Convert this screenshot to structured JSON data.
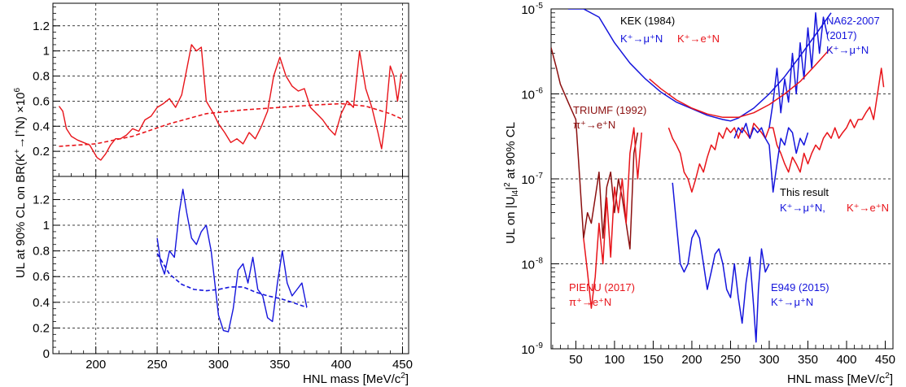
{
  "colors": {
    "red": "#e8141a",
    "blue": "#1515dc",
    "darkred": "#8b1010",
    "grid": "#000000"
  },
  "chart_data": [
    {
      "type": "line",
      "panel": "left-top",
      "xlabel": "",
      "ylabel": "",
      "xlim": [
        165,
        455
      ],
      "ylim": [
        0,
        1.38
      ],
      "yticks": [
        0.2,
        0.4,
        0.6,
        0.8,
        1,
        1.2
      ],
      "ytick_labels": [
        "0.2",
        "0.4",
        "0.6",
        "0.8",
        "1",
        "1.2"
      ],
      "grid": true,
      "series": [
        {
          "style": "solid",
          "color": "red",
          "x": [
            170,
            173,
            176,
            180,
            185,
            190,
            195,
            198,
            201,
            204,
            208,
            212,
            216,
            220,
            225,
            230,
            235,
            240,
            245,
            250,
            255,
            260,
            265,
            270,
            274,
            278,
            282,
            286,
            290,
            293,
            296,
            300,
            305,
            310,
            315,
            320,
            325,
            330,
            335,
            340,
            345,
            350,
            355,
            360,
            365,
            370,
            375,
            380,
            385,
            390,
            395,
            400,
            405,
            410,
            415,
            420,
            425,
            430,
            433,
            436,
            440,
            443,
            446,
            449
          ],
          "y": [
            0.56,
            0.52,
            0.38,
            0.32,
            0.29,
            0.27,
            0.25,
            0.2,
            0.15,
            0.13,
            0.18,
            0.25,
            0.3,
            0.3,
            0.33,
            0.38,
            0.36,
            0.45,
            0.48,
            0.55,
            0.58,
            0.62,
            0.55,
            0.65,
            0.85,
            1.05,
            1.0,
            1.03,
            0.6,
            0.55,
            0.5,
            0.42,
            0.35,
            0.27,
            0.3,
            0.26,
            0.35,
            0.3,
            0.4,
            0.52,
            0.8,
            0.95,
            0.8,
            0.72,
            0.68,
            0.7,
            0.55,
            0.5,
            0.45,
            0.38,
            0.33,
            0.5,
            0.6,
            0.55,
            1.0,
            0.7,
            0.55,
            0.35,
            0.22,
            0.45,
            0.88,
            0.8,
            0.6,
            0.82
          ]
        },
        {
          "style": "dashed",
          "color": "red",
          "x": [
            170,
            200,
            230,
            260,
            290,
            320,
            350,
            380,
            400,
            420,
            440,
            449
          ],
          "y": [
            0.24,
            0.26,
            0.32,
            0.42,
            0.5,
            0.53,
            0.55,
            0.57,
            0.58,
            0.56,
            0.5,
            0.46
          ]
        }
      ]
    },
    {
      "type": "line",
      "panel": "left-bottom",
      "xlabel": "HNL mass [MeV/c²]",
      "ylabel": "",
      "xlim": [
        165,
        455
      ],
      "ylim": [
        0,
        1.38
      ],
      "yticks": [
        0,
        0.2,
        0.4,
        0.6,
        0.8,
        1,
        1.2
      ],
      "ytick_labels": [
        "0",
        "0.2",
        "0.4",
        "0.6",
        "0.8",
        "1",
        "1.2"
      ],
      "xticks": [
        200,
        250,
        300,
        350,
        400,
        450
      ],
      "xtick_labels": [
        "200",
        "250",
        "300",
        "350",
        "400",
        "450"
      ],
      "grid": true,
      "series": [
        {
          "style": "solid",
          "color": "blue",
          "x": [
            250,
            253,
            256,
            260,
            264,
            268,
            271,
            274,
            278,
            282,
            286,
            290,
            294,
            297,
            300,
            304,
            308,
            312,
            316,
            320,
            324,
            328,
            332,
            336,
            340,
            344,
            348,
            352,
            356,
            360,
            364,
            368,
            372
          ],
          "y": [
            0.9,
            0.7,
            0.62,
            0.8,
            0.75,
            1.1,
            1.28,
            1.1,
            0.9,
            0.85,
            0.95,
            1.0,
            0.8,
            0.55,
            0.3,
            0.18,
            0.17,
            0.35,
            0.65,
            0.7,
            0.55,
            0.75,
            0.5,
            0.45,
            0.28,
            0.25,
            0.55,
            0.8,
            0.55,
            0.45,
            0.5,
            0.55,
            0.36
          ]
        },
        {
          "style": "dashed",
          "color": "blue",
          "x": [
            250,
            260,
            270,
            280,
            290,
            300,
            310,
            320,
            330,
            340,
            350,
            360,
            372
          ],
          "y": [
            0.78,
            0.62,
            0.54,
            0.5,
            0.49,
            0.5,
            0.52,
            0.52,
            0.48,
            0.45,
            0.43,
            0.4,
            0.36
          ]
        }
      ]
    },
    {
      "type": "line",
      "panel": "right",
      "xlabel": "HNL mass [MeV/c²]",
      "ylabel": "",
      "xlim": [
        18,
        460
      ],
      "ylim": [
        1e-09,
        1e-05
      ],
      "yscale": "log",
      "xticks": [
        50,
        100,
        150,
        200,
        250,
        300,
        350,
        400,
        450
      ],
      "xtick_labels": [
        "50",
        "100",
        "150",
        "200",
        "250",
        "300",
        "350",
        "400",
        "450"
      ],
      "grid": "y-major",
      "series": [
        {
          "color": "darkred",
          "x": [
            18,
            25,
            30,
            40,
            50,
            55,
            60,
            65,
            70,
            75,
            80,
            85,
            90,
            95,
            100,
            105,
            110,
            115,
            120,
            125,
            130
          ],
          "y": [
            3.5e-06,
            2e-06,
            1.3e-06,
            8e-07,
            5e-07,
            1e-07,
            2e-08,
            4e-08,
            3e-08,
            6e-08,
            1.2e-07,
            2e-08,
            8e-08,
            1.2e-07,
            4e-08,
            1e-07,
            6e-08,
            3e-08,
            1.5e-08,
            2e-07,
            3.5e-07
          ]
        },
        {
          "color": "red",
          "x": [
            60,
            65,
            70,
            75,
            80,
            85,
            90,
            95,
            100,
            105,
            110,
            115,
            120,
            125,
            130,
            135
          ],
          "y": [
            2e-08,
            8e-09,
            3e-09,
            7e-09,
            3e-08,
            1e-08,
            6e-08,
            1.2e-08,
            8e-08,
            4e-08,
            1e-07,
            3e-08,
            2e-07,
            4e-07,
            1e-07,
            3.5e-07
          ]
        },
        {
          "color": "red",
          "x": [
            170,
            175,
            180,
            185,
            190,
            195,
            200,
            205,
            210,
            215,
            220,
            225,
            230,
            235,
            240,
            245,
            250,
            255,
            260,
            265,
            270,
            275,
            280,
            285,
            290,
            295,
            300,
            305,
            310,
            315,
            320,
            325,
            330,
            335,
            340,
            345,
            350,
            355,
            360,
            365,
            370,
            375,
            380,
            385,
            390,
            395,
            400,
            405,
            410,
            415,
            420,
            425,
            430,
            435,
            440,
            445,
            448
          ],
          "y": [
            4e-07,
            3e-07,
            2.5e-07,
            2e-07,
            1.2e-07,
            1e-07,
            7e-08,
            1e-07,
            1.5e-07,
            1.2e-07,
            1.8e-07,
            2.5e-07,
            2.2e-07,
            3.5e-07,
            3e-07,
            4e-07,
            3.5e-07,
            4e-07,
            3e-07,
            4e-07,
            3.5e-07,
            3e-07,
            4.5e-07,
            4e-07,
            3.5e-07,
            3e-07,
            4e-07,
            4e-07,
            2.5e-07,
            2e-07,
            1.5e-07,
            1.2e-07,
            1.8e-07,
            1.5e-07,
            1.2e-07,
            2e-07,
            1.5e-07,
            2e-07,
            2.5e-07,
            2.2e-07,
            3e-07,
            3.5e-07,
            3e-07,
            4e-07,
            3e-07,
            3.5e-07,
            4e-07,
            5e-07,
            4e-07,
            5e-07,
            5e-07,
            6e-07,
            7e-07,
            5e-07,
            1e-06,
            2e-06,
            1.2e-06
          ]
        },
        {
          "color": "blue",
          "x": [
            175,
            180,
            185,
            190,
            195,
            200,
            205,
            210,
            215,
            220,
            225,
            230,
            235,
            240,
            245,
            250,
            255,
            260,
            265,
            270,
            275,
            280,
            283,
            286,
            290,
            295,
            300
          ],
          "y": [
            9e-08,
            3e-08,
            1e-08,
            8e-09,
            1e-08,
            2e-08,
            2.5e-08,
            2e-08,
            1e-08,
            5e-09,
            8e-09,
            1.3e-08,
            1.5e-08,
            1e-08,
            5e-09,
            4e-09,
            1e-08,
            4e-09,
            2e-09,
            6e-09,
            1.2e-08,
            3e-09,
            1.2e-09,
            5e-09,
            1.5e-08,
            8e-09,
            1e-08
          ]
        },
        {
          "color": "blue",
          "x": [
            255,
            260,
            265,
            270,
            275,
            280,
            285,
            290,
            295,
            300,
            305,
            310,
            315,
            320,
            325,
            330,
            335,
            340,
            345,
            350
          ],
          "y": [
            3e-07,
            4e-07,
            3.5e-07,
            4.5e-07,
            3e-07,
            4e-07,
            3.5e-07,
            4e-07,
            3e-07,
            2.5e-07,
            7e-08,
            1.5e-07,
            3e-07,
            2.5e-07,
            4e-07,
            3.5e-07,
            2e-07,
            3e-07,
            2.5e-07,
            3.5e-07
          ]
        },
        {
          "color": "blue",
          "x": [
            300,
            305,
            310,
            315,
            320,
            325,
            330,
            335,
            340,
            345,
            350,
            355,
            360,
            365,
            370,
            375
          ],
          "y": [
            4e-07,
            8e-07,
            2e-06,
            6e-07,
            1.5e-06,
            8e-07,
            3e-06,
            1e-06,
            4e-06,
            1.5e-06,
            6e-06,
            2e-06,
            9e-06,
            3e-06,
            8e-06,
            5e-06
          ]
        },
        {
          "color": "blue",
          "x": [
            40,
            60,
            80,
            100,
            120,
            140,
            160,
            180,
            200,
            220,
            240,
            250,
            260,
            280,
            300,
            320,
            340,
            360,
            380
          ],
          "y": [
            1e-05,
            1e-05,
            8e-06,
            4e-06,
            2.3e-06,
            1.5e-06,
            1.05e-06,
            8e-07,
            6.7e-07,
            5.6e-07,
            5e-07,
            4.8e-07,
            5.2e-07,
            6.8e-07,
            1e-06,
            1.6e-06,
            2.8e-06,
            5e-06,
            9e-06
          ]
        },
        {
          "color": "red",
          "x": [
            145,
            160,
            180,
            200,
            220,
            240,
            260,
            280,
            300,
            320,
            340,
            360,
            380
          ],
          "y": [
            1.5e-06,
            1.15e-06,
            8.5e-07,
            6.8e-07,
            5.8e-07,
            5.3e-07,
            5.3e-07,
            6e-07,
            7.5e-07,
            1e-06,
            1.4e-06,
            2.2e-06,
            3.5e-06
          ]
        }
      ]
    }
  ],
  "labels": {
    "kek": "KEK (1984)",
    "kek_mu": "K⁺→μ⁺N",
    "kek_e": "K⁺→e⁺N",
    "na62": "NA62-2007",
    "na62_year": "(2017)",
    "na62_mu": "K⁺→μ⁺N",
    "triumf": "TRIUMF (1992)",
    "triumf_pi": "π⁺→e⁺N",
    "this": "This result",
    "this_mu": "K⁺→μ⁺N,",
    "this_e": "K⁺→e⁺N",
    "pienu": "PIENU (2017)",
    "pienu_pi": "π⁺→e⁺N",
    "e949": "E949 (2015)",
    "e949_mu": "K⁺→μ⁺N"
  }
}
